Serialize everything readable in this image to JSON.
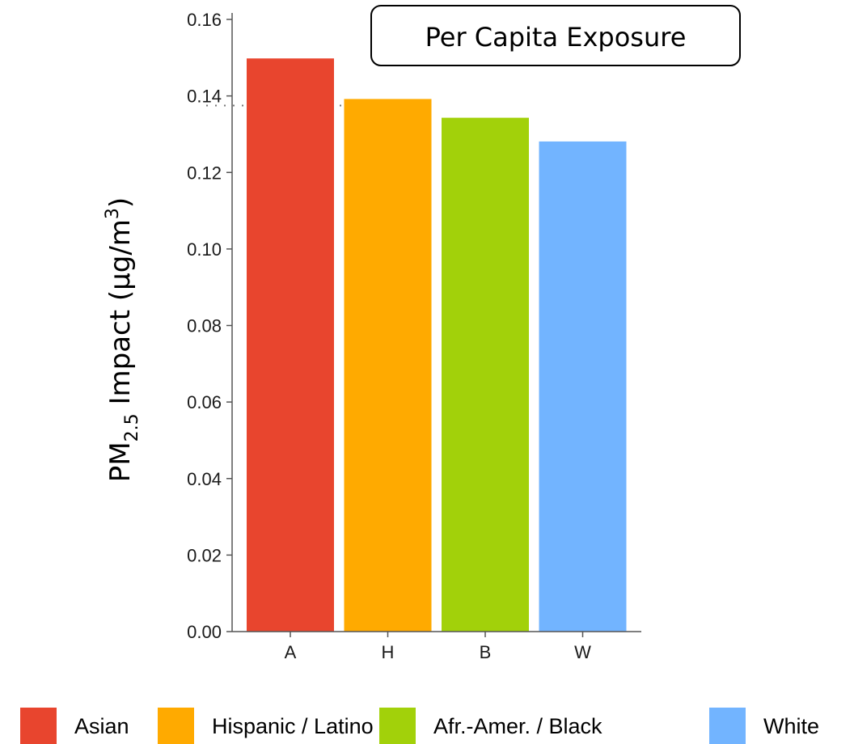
{
  "chart_data": {
    "type": "bar",
    "title": "Per Capita Exposure",
    "ylabel": {
      "prefix": "PM",
      "subscript": "2.5",
      "middle": " Impact (µg/m",
      "superscript": "3",
      "suffix": ")"
    },
    "categories": [
      "A",
      "H",
      "B",
      "W"
    ],
    "values": [
      0.1498,
      0.1392,
      0.1343,
      0.1281
    ],
    "colors": [
      "#e8452e",
      "#ffaa00",
      "#a2d10a",
      "#72b4ff"
    ],
    "ylim": [
      0,
      0.16
    ],
    "yticks": [
      "0.00",
      "0.02",
      "0.04",
      "0.06",
      "0.08",
      "0.10",
      "0.12",
      "0.14",
      "0.16"
    ],
    "reference_line": 0.1375,
    "grid": false,
    "legend_position": "bottom",
    "legend": [
      {
        "label": "Asian",
        "color": "#e8452e"
      },
      {
        "label": "Hispanic / Latino",
        "color": "#ffaa00"
      },
      {
        "label": "Afr.-Amer. / Black",
        "color": "#a2d10a"
      },
      {
        "label": "White",
        "color": "#72b4ff"
      }
    ]
  }
}
